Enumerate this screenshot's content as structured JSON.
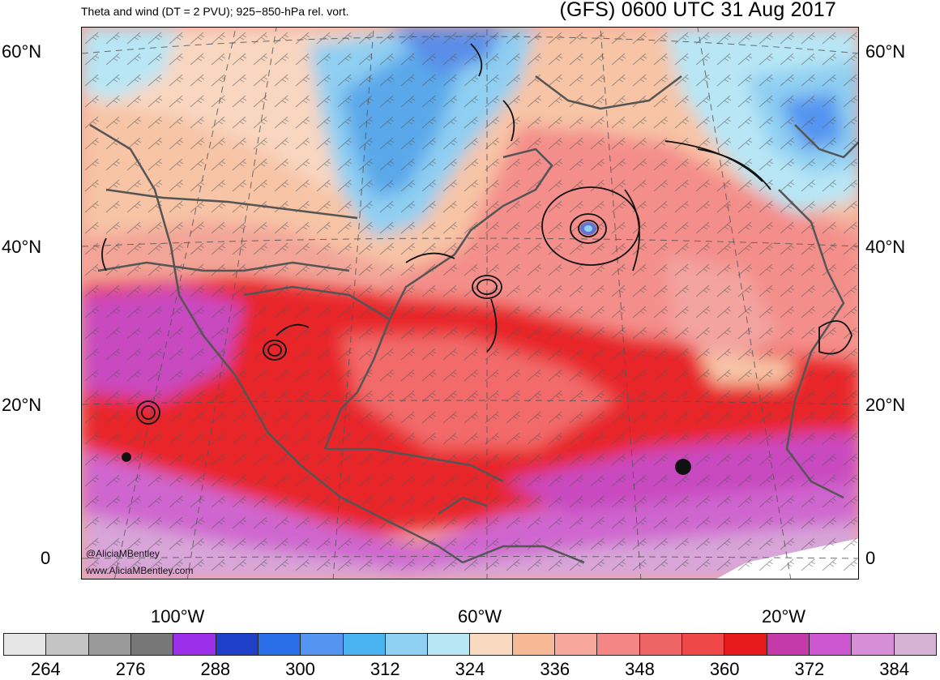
{
  "title": {
    "left": "Theta and wind (DT = 2 PVU); 925−850-hPa rel. vort.",
    "right": "(GFS) 0600 UTC 31 Aug 2017"
  },
  "lat_labels": [
    "60°N",
    "40°N",
    "20°N",
    "0"
  ],
  "lon_labels": [
    "100°W",
    "60°W",
    "20°W"
  ],
  "credits": [
    "@AliciaMBentley",
    "www.AliciaMBentley.com"
  ],
  "colorbar": {
    "colors": [
      "#e6e6e6",
      "#c4c4c4",
      "#9a9a9a",
      "#777777",
      "#9b30e8",
      "#1f3fc9",
      "#2a6ee8",
      "#5594f0",
      "#4ab4f0",
      "#8fcff2",
      "#b8e6f5",
      "#f9d9bf",
      "#f7b895",
      "#f7a89a",
      "#f48686",
      "#ef6565",
      "#ef4848",
      "#e61a1a",
      "#c33aa8",
      "#cc55d0",
      "#d78ed9",
      "#d6b1d6"
    ],
    "tick_labels": [
      "264",
      "276",
      "288",
      "300",
      "312",
      "324",
      "336",
      "348",
      "360",
      "372",
      "384"
    ]
  }
}
